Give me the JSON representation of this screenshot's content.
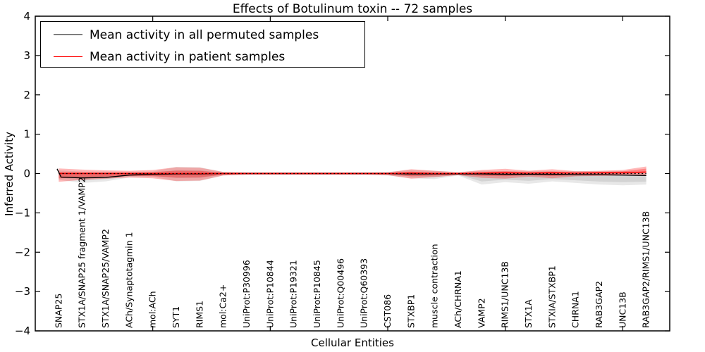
{
  "chart_data": {
    "type": "line",
    "title": "Effects of Botulinum toxin -- 72 samples",
    "xlabel": "Cellular Entities",
    "ylabel": "Inferred Activity",
    "ylim": [
      -4,
      4
    ],
    "yticks": [
      -4,
      -3,
      -2,
      -1,
      0,
      1,
      2,
      3,
      4
    ],
    "xlim": [
      0,
      27
    ],
    "xticks": [
      5,
      10,
      15,
      20,
      25
    ],
    "grid": false,
    "legend_position": "upper-left",
    "categories": [
      "SNAP25",
      "STX1A/SNAP25 fragment 1/VAMP2",
      "STX1A/SNAP25/VAMP2",
      "ACh/Synaptotagmin 1",
      "mol:ACh",
      "SYT1",
      "RIMS1",
      "mol:Ca2+",
      "UniProt:P30996",
      "UniProt:P10844",
      "UniProt:P19321",
      "UniProt:P10845",
      "UniProt:Q00496",
      "UniProt:Q60393",
      "CST086",
      "STXBP1",
      "muscle contraction",
      "ACh/CHRNA1",
      "VAMP2",
      "RIMS1/UNC13B",
      "STX1A",
      "STXIA/STXBP1",
      "CHRNA1",
      "RAB3GAP2",
      "UNC13B",
      "RAB3GAP2/RIMS1/UNC13B"
    ],
    "series": [
      {
        "name": "Mean activity in all permuted samples",
        "color": "#000000",
        "x": [
          0.93,
          1.1,
          2,
          3,
          4,
          5,
          6,
          7,
          8,
          9,
          10,
          11,
          12,
          13,
          14,
          15,
          16,
          17,
          18,
          19,
          20,
          21,
          22,
          23,
          24,
          25,
          26
        ],
        "values": [
          0.12,
          -0.09,
          -0.11,
          -0.1,
          -0.04,
          -0.02,
          -0.01,
          -0.01,
          0,
          0,
          0,
          0,
          0,
          0,
          0,
          0,
          -0.01,
          -0.01,
          -0.01,
          -0.01,
          -0.02,
          -0.02,
          -0.02,
          -0.03,
          -0.03,
          -0.04,
          -0.05
        ]
      },
      {
        "name": "Mean activity in patient samples",
        "color": "#ff0000",
        "x": [
          1,
          2,
          3,
          4,
          5,
          6,
          7,
          8,
          9,
          10,
          11,
          12,
          13,
          14,
          15,
          16,
          17,
          18,
          19,
          20,
          21,
          22,
          23,
          24,
          25,
          26
        ],
        "values": [
          0,
          0,
          0,
          0,
          0,
          0,
          0,
          0,
          0,
          0,
          0,
          0,
          0,
          0,
          0,
          0.01,
          0,
          0,
          0.01,
          0.02,
          0.01,
          0.02,
          0.01,
          0.02,
          0.02,
          0.04
        ]
      }
    ],
    "bands": [
      {
        "name": "permuted-samples-band",
        "color_rgb": "0,0,0",
        "alpha": 0.09,
        "inner_factor": 0.55,
        "low": [
          -0.16,
          -0.24,
          -0.2,
          -0.1,
          -0.08,
          -0.2,
          -0.19,
          -0.05,
          -0.03,
          -0.03,
          -0.03,
          -0.03,
          -0.03,
          -0.03,
          -0.05,
          -0.12,
          -0.14,
          -0.05,
          -0.28,
          -0.22,
          -0.26,
          -0.2,
          -0.24,
          -0.28,
          -0.3,
          -0.28
        ],
        "high": [
          0.08,
          0.05,
          0.05,
          0.04,
          0.05,
          0.17,
          0.16,
          0.04,
          0.03,
          0.03,
          0.03,
          0.03,
          0.03,
          0.03,
          0.04,
          0.09,
          0.07,
          0.04,
          0.07,
          0.06,
          0.07,
          0.06,
          0.06,
          0.06,
          0.06,
          0.05
        ]
      },
      {
        "name": "patient-samples-band",
        "color_rgb": "255,0,0",
        "alpha": 0.28,
        "inner_factor": 0.5,
        "low": [
          -0.21,
          -0.16,
          -0.13,
          -0.1,
          -0.12,
          -0.19,
          -0.18,
          -0.05,
          -0.03,
          -0.03,
          -0.03,
          -0.03,
          -0.03,
          -0.03,
          -0.04,
          -0.13,
          -0.09,
          -0.04,
          -0.11,
          -0.13,
          -0.08,
          -0.12,
          -0.07,
          -0.06,
          -0.05,
          -0.04
        ],
        "high": [
          0.13,
          0.1,
          0.08,
          0.07,
          0.09,
          0.16,
          0.15,
          0.04,
          0.03,
          0.03,
          0.03,
          0.03,
          0.03,
          0.03,
          0.03,
          0.11,
          0.07,
          0.03,
          0.09,
          0.12,
          0.07,
          0.11,
          0.06,
          0.07,
          0.09,
          0.18
        ]
      }
    ],
    "zero_line": {
      "value": 0,
      "color": "#000000",
      "style": "dotted"
    }
  }
}
